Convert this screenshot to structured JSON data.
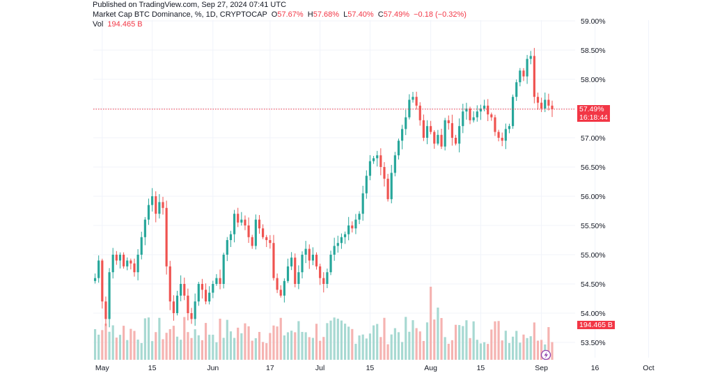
{
  "header": {
    "published": "Published on TradingView.com, Sep 27, 2024 07:41 UTC",
    "symbol": "Market Cap BTC Dominance, %, 1D, CRYPTOCAP",
    "o_label": "O",
    "o_value": "57.67%",
    "h_label": "H",
    "h_value": "57.68%",
    "l_label": "L",
    "l_value": "57.40%",
    "c_label": "C",
    "c_value": "57.49%",
    "change": "−0.18 (−0.32%)",
    "vol_label": "Vol",
    "vol_value": "194.465 B"
  },
  "price_tag": {
    "value": "57.49%",
    "countdown": "16:18:44"
  },
  "vol_tag": "194.465 B",
  "colors": {
    "up": "#26a69a",
    "down": "#ef5350",
    "up_vol": "#a7d9d2",
    "down_vol": "#f5b3b1",
    "last_line": "#f23645"
  },
  "chart_data": {
    "type": "candlestick",
    "title": "Market Cap BTC Dominance, %, 1D, CRYPTOCAP",
    "y_range": [
      53.2,
      59.15
    ],
    "y_ticks": [
      "59.00%",
      "58.50%",
      "58.00%",
      "57.50%",
      "57.00%",
      "56.50%",
      "56.00%",
      "55.50%",
      "55.00%",
      "54.50%",
      "54.00%",
      "53.50%"
    ],
    "y_tick_values": [
      59.0,
      58.5,
      58.0,
      57.5,
      57.0,
      56.5,
      56.0,
      55.5,
      55.0,
      54.5,
      54.0,
      53.5
    ],
    "x_ticks": [
      {
        "label": "May",
        "index": 2
      },
      {
        "label": "15",
        "index": 16
      },
      {
        "label": "Jun",
        "index": 33
      },
      {
        "label": "17",
        "index": 49
      },
      {
        "label": "Jul",
        "index": 63
      },
      {
        "label": "15",
        "index": 77
      },
      {
        "label": "Aug",
        "index": 94
      },
      {
        "label": "15",
        "index": 108
      },
      {
        "label": "Sep",
        "index": 125
      },
      {
        "label": "16",
        "index": 140
      },
      {
        "label": "Oct",
        "index": 155
      }
    ],
    "last_close": 57.49,
    "closes": [
      54.6,
      54.9,
      54.2,
      53.9,
      54.7,
      55.0,
      54.9,
      55.0,
      54.8,
      54.9,
      54.85,
      54.7,
      55.0,
      55.3,
      55.6,
      55.85,
      56.0,
      55.7,
      55.9,
      55.8,
      54.8,
      54.2,
      54.0,
      54.3,
      54.5,
      54.3,
      54.0,
      53.9,
      54.2,
      54.5,
      54.4,
      54.2,
      54.35,
      54.5,
      54.6,
      54.5,
      55.0,
      55.25,
      55.35,
      55.7,
      55.55,
      55.6,
      55.5,
      55.3,
      55.15,
      55.6,
      55.45,
      55.3,
      55.25,
      55.2,
      54.6,
      54.4,
      54.3,
      54.55,
      54.8,
      54.95,
      54.5,
      54.7,
      55.0,
      55.1,
      54.9,
      55.0,
      54.8,
      54.6,
      54.5,
      54.7,
      55.0,
      55.15,
      55.2,
      55.3,
      55.35,
      55.5,
      55.45,
      55.6,
      55.7,
      56.05,
      56.35,
      56.6,
      56.65,
      56.7,
      56.5,
      56.3,
      55.95,
      56.4,
      56.7,
      56.95,
      57.15,
      57.35,
      57.65,
      57.7,
      57.55,
      57.3,
      57.0,
      57.2,
      57.1,
      56.9,
      57.05,
      56.85,
      57.3,
      57.25,
      57.0,
      56.9,
      57.2,
      57.45,
      57.5,
      57.3,
      57.35,
      57.45,
      57.5,
      57.55,
      57.4,
      57.35,
      57.1,
      57.0,
      56.95,
      57.15,
      57.2,
      57.7,
      57.95,
      58.15,
      58.05,
      58.35,
      58.4,
      57.7,
      57.6,
      57.5,
      57.65,
      57.55,
      57.49
    ],
    "volume_unit": "B",
    "last_volume": 194.465
  }
}
